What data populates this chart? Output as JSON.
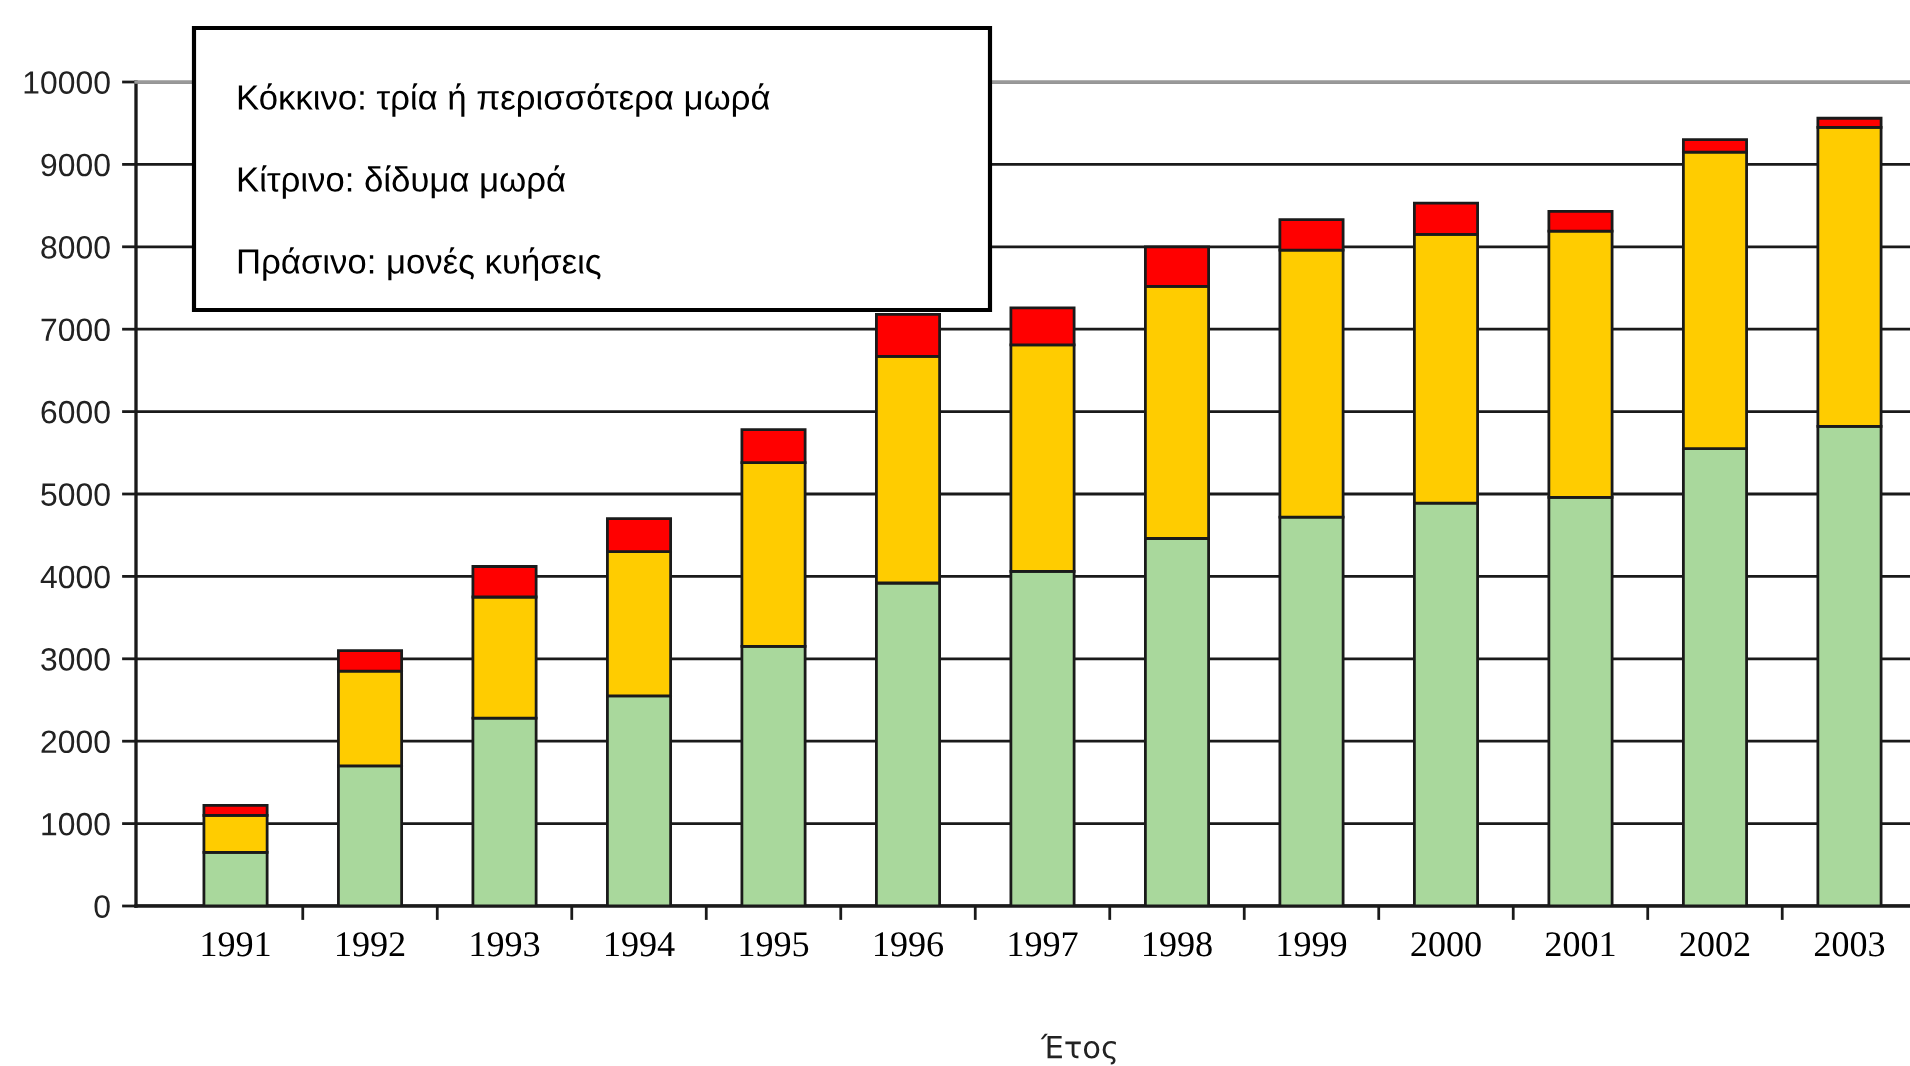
{
  "chart_data": {
    "type": "bar",
    "stacked": true,
    "xlabel": "Έτος",
    "categories": [
      "1991",
      "1992",
      "1993",
      "1994",
      "1995",
      "1996",
      "1997",
      "1998",
      "1999",
      "2000",
      "2001",
      "2002",
      "2003"
    ],
    "series": [
      {
        "color": "#a9d89c",
        "values": [
          650,
          1700,
          2280,
          2550,
          3150,
          3920,
          4060,
          4460,
          4720,
          4890,
          4960,
          5550,
          5820
        ]
      },
      {
        "color": "#ffcc00",
        "values": [
          450,
          1150,
          1470,
          1750,
          2230,
          2750,
          2750,
          3060,
          3240,
          3260,
          3230,
          3600,
          3630
        ]
      },
      {
        "color": "#ff0000",
        "values": [
          120,
          250,
          370,
          400,
          400,
          510,
          450,
          480,
          370,
          380,
          240,
          150,
          110
        ]
      }
    ],
    "ylim": [
      0,
      10000
    ],
    "yticks": [
      0,
      1000,
      2000,
      3000,
      4000,
      5000,
      6000,
      7000,
      8000,
      9000,
      10000
    ],
    "grid": "y",
    "annotations": [
      "Κόκκινο: τρία ή περισσότερα μωρά",
      "Κίτρινο: δίδυμα μωρά",
      "Πράσινο: μονές κυήσεις"
    ]
  }
}
